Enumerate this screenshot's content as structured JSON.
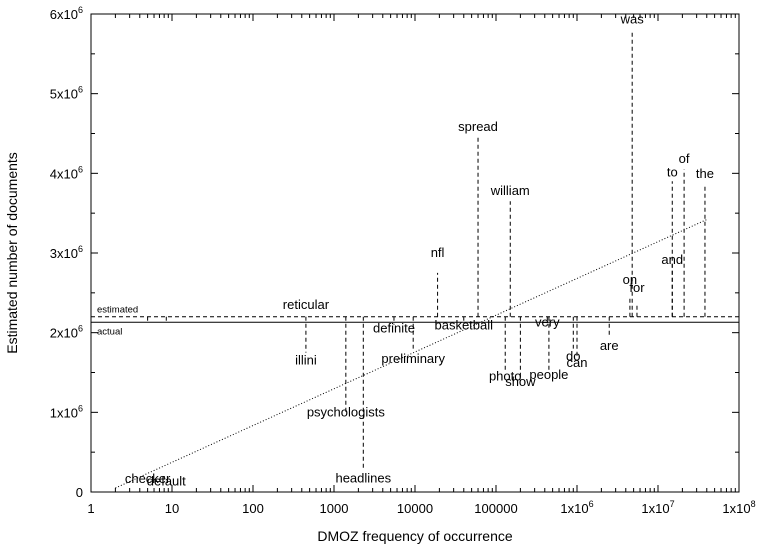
{
  "chart_data": {
    "type": "scatter",
    "xlabel": "DMOZ frequency of occurrence",
    "ylabel": "Estimated number of documents",
    "x_scale": "log",
    "xlim": [
      1,
      100000000
    ],
    "ylim": [
      0,
      6000000
    ],
    "x_ticks": [
      {
        "value": 1,
        "label": "1"
      },
      {
        "value": 10,
        "label": "10"
      },
      {
        "value": 100,
        "label": "100"
      },
      {
        "value": 1000,
        "label": "1000"
      },
      {
        "value": 10000,
        "label": "10000"
      },
      {
        "value": 100000,
        "label": "100000"
      },
      {
        "value": 1000000,
        "label": "1x10",
        "exp": "6"
      },
      {
        "value": 10000000,
        "label": "1x10",
        "exp": "7"
      },
      {
        "value": 100000000,
        "label": "1x10",
        "exp": "8"
      }
    ],
    "y_ticks": [
      {
        "value": 0,
        "label": "0"
      },
      {
        "value": 1000000,
        "label": "1x10",
        "exp": "6"
      },
      {
        "value": 2000000,
        "label": "2x10",
        "exp": "6"
      },
      {
        "value": 3000000,
        "label": "3x10",
        "exp": "6"
      },
      {
        "value": 4000000,
        "label": "4x10",
        "exp": "6"
      },
      {
        "value": 5000000,
        "label": "5x10",
        "exp": "6"
      },
      {
        "value": 6000000,
        "label": "6x10",
        "exp": "6"
      }
    ],
    "reference_lines": {
      "estimated": {
        "label": "estimated",
        "y": 2200000,
        "style": "dashed"
      },
      "actual": {
        "label": "actual",
        "y": 2130000,
        "style": "solid"
      }
    },
    "trend_line": {
      "style": "dotted",
      "x": [
        2,
        40000000
      ],
      "y": [
        50000,
        3420000
      ]
    },
    "points": [
      {
        "word": "checker",
        "x": 5,
        "y": 2130000,
        "label_y": 110000
      },
      {
        "word": "default",
        "x": 8.5,
        "y": 2130000,
        "label_y": 80000
      },
      {
        "word": "reticular",
        "x": 450,
        "y": 2200000,
        "label_y": 2300000
      },
      {
        "word": "illini",
        "x": 450,
        "y": 1750000,
        "label_y": 1600000
      },
      {
        "word": "psychologists",
        "x": 1400,
        "y": 1000000,
        "label_y": 950000
      },
      {
        "word": "headlines",
        "x": 2300,
        "y": 300000,
        "label_y": 120000
      },
      {
        "word": "definite",
        "x": 5500,
        "y": 2100000,
        "label_y": 2000000
      },
      {
        "word": "preliminary",
        "x": 9500,
        "y": 1800000,
        "label_y": 1620000
      },
      {
        "word": "nfl",
        "x": 19000,
        "y": 2750000,
        "label_y": 2950000
      },
      {
        "word": "basketball",
        "x": 40000,
        "y": 2130000,
        "label_y": 2040000
      },
      {
        "word": "spread",
        "x": 60000,
        "y": 4450000,
        "label_y": 4530000
      },
      {
        "word": "william",
        "x": 150000,
        "y": 3650000,
        "label_y": 3730000
      },
      {
        "word": "photo",
        "x": 130000,
        "y": 1500000,
        "label_y": 1400000
      },
      {
        "word": "show",
        "x": 200000,
        "y": 1400000,
        "label_y": 1330000
      },
      {
        "word": "people",
        "x": 450000,
        "y": 1500000,
        "label_y": 1420000
      },
      {
        "word": "very",
        "x": 430000,
        "y": 2100000,
        "label_y": 2080000
      },
      {
        "word": "do",
        "x": 900000,
        "y": 1800000,
        "label_y": 1650000
      },
      {
        "word": "can",
        "x": 1000000,
        "y": 1700000,
        "label_y": 1570000
      },
      {
        "word": "are",
        "x": 2500000,
        "y": 1950000,
        "label_y": 1780000
      },
      {
        "word": "on",
        "x": 4500000,
        "y": 2450000,
        "label_y": 2610000
      },
      {
        "word": "for",
        "x": 5500000,
        "y": 2350000,
        "label_y": 2510000
      },
      {
        "word": "was",
        "x": 4800000,
        "y": 5800000,
        "label_y": 5880000
      },
      {
        "word": "and",
        "x": 15000000,
        "y": 2900000,
        "label_y": 2860000
      },
      {
        "word": "to",
        "x": 15000000,
        "y": 3900000,
        "label_y": 3960000
      },
      {
        "word": "of",
        "x": 21000000,
        "y": 4050000,
        "label_y": 4130000
      },
      {
        "word": "the",
        "x": 38000000,
        "y": 3850000,
        "label_y": 3940000
      }
    ]
  }
}
